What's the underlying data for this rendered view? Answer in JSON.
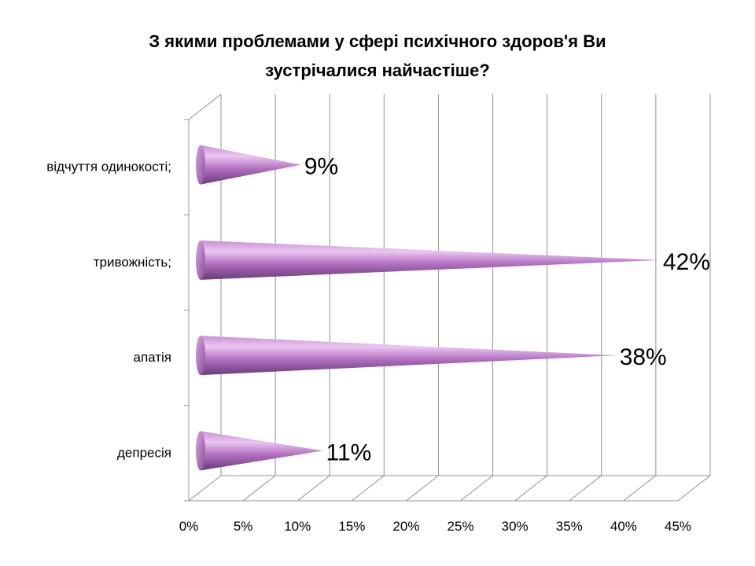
{
  "chart_data": {
    "type": "bar",
    "orientation": "horizontal",
    "style": "3d-cone",
    "title_lines": [
      "З якими проблемами у сфері психічного здоров'я Ви",
      "зустрічалися найчастіше?"
    ],
    "categories": [
      "відчуття одинокості;",
      "тривожність;",
      "апатія",
      "депресія"
    ],
    "values": [
      9,
      42,
      38,
      11
    ],
    "data_labels": [
      "9%",
      "42%",
      "38%",
      "11%"
    ],
    "xlim": [
      0,
      45
    ],
    "x_ticks": [
      0,
      5,
      10,
      15,
      20,
      25,
      30,
      35,
      40,
      45
    ],
    "x_tick_labels": [
      "0%",
      "5%",
      "10%",
      "15%",
      "20%",
      "25%",
      "30%",
      "35%",
      "40%",
      "45%"
    ],
    "grid": true,
    "legend": "none",
    "colors": {
      "bar_light": "#e6b8ee",
      "bar_mid": "#b56fc4",
      "bar_dark": "#6a3a78",
      "grid": "#909090",
      "axis": "#808080"
    }
  }
}
